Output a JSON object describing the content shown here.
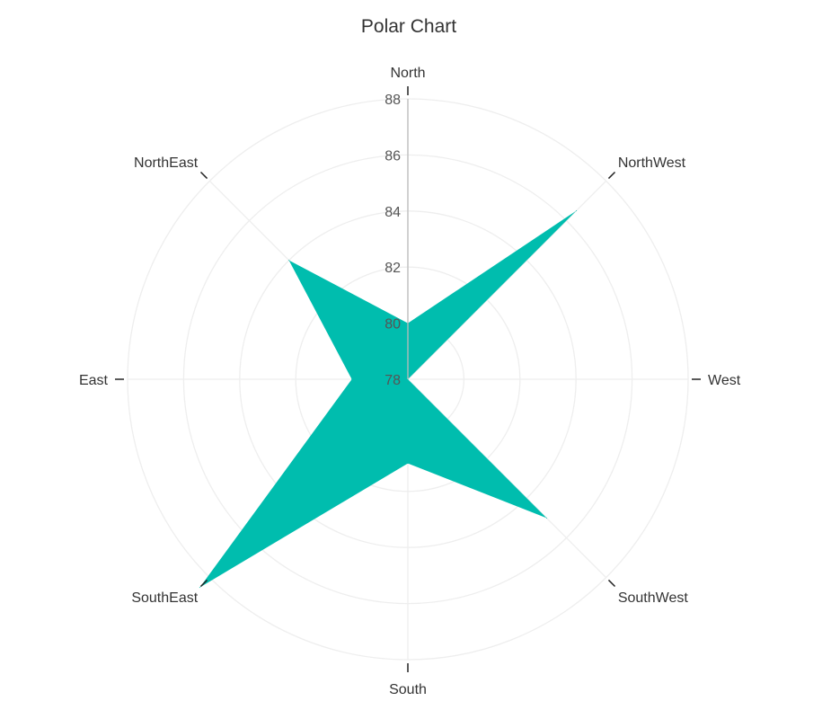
{
  "chart_data": {
    "type": "radar",
    "title": "Polar Chart",
    "categories": [
      "North",
      "NorthWest",
      "West",
      "SouthWest",
      "South",
      "SouthEast",
      "East",
      "NorthEast"
    ],
    "series": [
      {
        "values": [
          80,
          86.5,
          78,
          85,
          81,
          88.5,
          80,
          84
        ]
      }
    ],
    "rlim": [
      78,
      88
    ],
    "r_ticks": [
      "78",
      "80",
      "82",
      "84",
      "86",
      "88"
    ],
    "grid": true,
    "fill_color": "#00BDAE",
    "grid_color": "#EEEEEE",
    "axis_line_color": "#BBBBBB"
  }
}
